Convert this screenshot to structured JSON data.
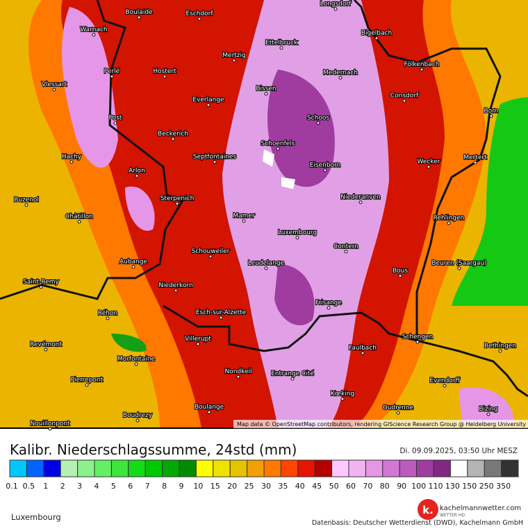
{
  "title": "Kalibr. Niederschlagssumme, 24std (mm)",
  "timestamp": "Di. 09.09.2025, 03:50 Uhr MESZ",
  "attribution": "Map data © OpenStreetMap contributors, rendering GIScience Research Group @ Heidelberg University",
  "region": "Luxembourg",
  "logo": {
    "name": "kachelmannwetter.com",
    "sub": "WETTER HD"
  },
  "data_source": "Datenbasis: Deutscher Wetterdienst (DWD), Kachelmann GmbH",
  "legend": {
    "colors": [
      "#00c8ff",
      "#0064ff",
      "#0000e6",
      "#b4f0b4",
      "#8cf08c",
      "#64f064",
      "#3ce63c",
      "#14dc14",
      "#00c800",
      "#00aa00",
      "#008c00",
      "#ffff00",
      "#f0e100",
      "#e6c300",
      "#f0a000",
      "#ff7800",
      "#ff4600",
      "#e61400",
      "#b40000",
      "#ffc8ff",
      "#f0b4f0",
      "#e696e6",
      "#d278d2",
      "#be5abe",
      "#a03ca0",
      "#822882",
      "#ffffff",
      "#b4b4b4",
      "#787878",
      "#323232"
    ],
    "labels": [
      0.1,
      0.5,
      1,
      2,
      3,
      4,
      5,
      6,
      7,
      8,
      9,
      10,
      15,
      20,
      25,
      30,
      35,
      40,
      45,
      50,
      60,
      70,
      80,
      90,
      100,
      110,
      130,
      150,
      250,
      350
    ]
  },
  "places": [
    "Boulaide",
    "Eschdorf",
    "Longsdorf",
    "Warnach",
    "Ettelbruck",
    "Mertzig",
    "Bigelbach",
    "Perlé",
    "Hostert",
    "Medernach",
    "Fölkenbach",
    "Vlessart",
    "Bissen",
    "Everlange",
    "Consdorf",
    "Born",
    "Post",
    "Schoos",
    "Beckerich",
    "Schoenfels",
    "Hachy",
    "Septfontaines",
    "Eisenborn",
    "Wecker",
    "Mertert",
    "Arlon",
    "Buzenol",
    "Sterpenich",
    "Niederanven",
    "Châtillon",
    "Mamer",
    "Rehlingen",
    "Luxembourg",
    "Schouweiler",
    "Contern",
    "Aubange",
    "Leudelange",
    "Bous",
    "Beuren (Saargau)",
    "Saint-Remy",
    "Niederkorn",
    "Frisange",
    "Réhon",
    "Esch-sur-Alzette",
    "Schengen",
    "Villerupt",
    "Faulbach",
    "Bethingen",
    "Revémont",
    "Morfontaine",
    "Nondkeil",
    "Entrange Cité",
    "Pierrepont",
    "Evendorff",
    "Kœking",
    "Oudrenne",
    "Boulange",
    "Bizing",
    "Boudrezy",
    "Nouillonpont"
  ]
}
